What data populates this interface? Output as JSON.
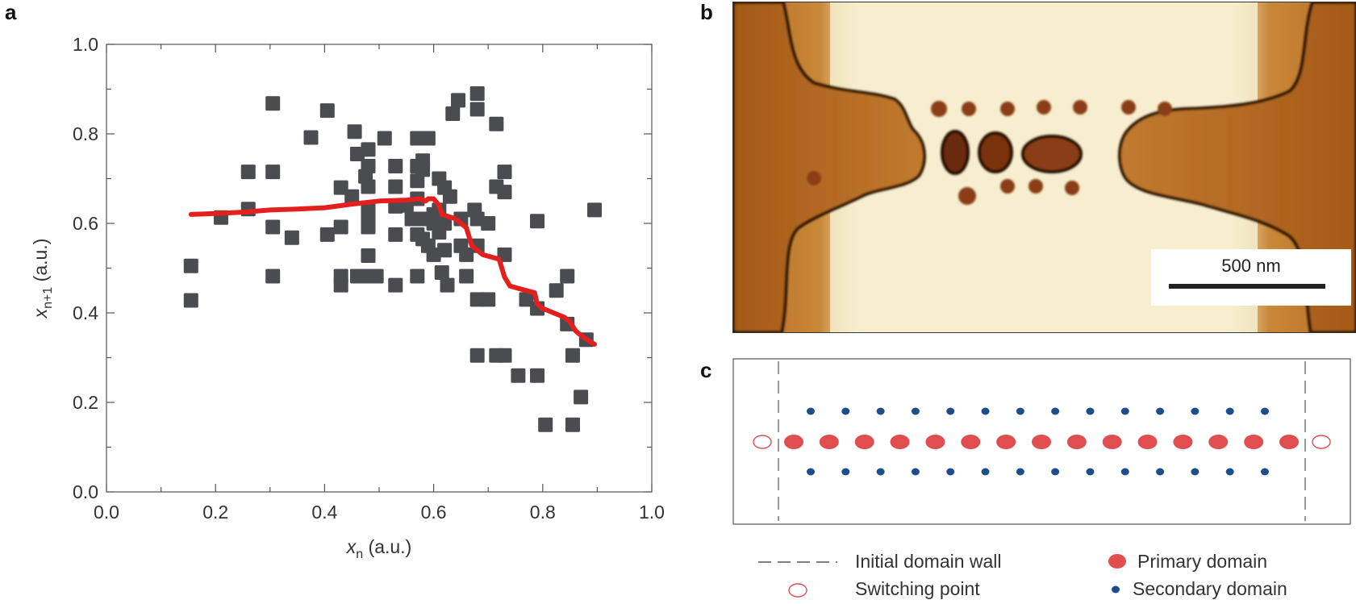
{
  "panels": {
    "a": "a",
    "b": "b",
    "c": "c"
  },
  "chart_data": {
    "type": "scatter",
    "xlabel_main": "x",
    "xlabel_sub": "n",
    "xlabel_unit": " (a.u.)",
    "ylabel_main": "x",
    "ylabel_sub": "n+1",
    "ylabel_unit": " (a.u.)",
    "xlim": [
      0,
      1
    ],
    "ylim": [
      0,
      1
    ],
    "xticks": [
      "0.0",
      "0.2",
      "0.4",
      "0.6",
      "0.8",
      "1.0"
    ],
    "yticks": [
      "0.0",
      "0.2",
      "0.4",
      "0.6",
      "0.8",
      "1.0"
    ],
    "grid": false,
    "points": [
      [
        0.155,
        0.505
      ],
      [
        0.155,
        0.428
      ],
      [
        0.21,
        0.613
      ],
      [
        0.26,
        0.715
      ],
      [
        0.26,
        0.632
      ],
      [
        0.305,
        0.868
      ],
      [
        0.305,
        0.715
      ],
      [
        0.305,
        0.592
      ],
      [
        0.305,
        0.482
      ],
      [
        0.34,
        0.568
      ],
      [
        0.375,
        0.792
      ],
      [
        0.405,
        0.852
      ],
      [
        0.405,
        0.575
      ],
      [
        0.43,
        0.68
      ],
      [
        0.43,
        0.592
      ],
      [
        0.43,
        0.482
      ],
      [
        0.43,
        0.462
      ],
      [
        0.45,
        0.66
      ],
      [
        0.455,
        0.805
      ],
      [
        0.46,
        0.755
      ],
      [
        0.46,
        0.482
      ],
      [
        0.475,
        0.705
      ],
      [
        0.48,
        0.765
      ],
      [
        0.48,
        0.728
      ],
      [
        0.48,
        0.682
      ],
      [
        0.48,
        0.635
      ],
      [
        0.48,
        0.615
      ],
      [
        0.48,
        0.592
      ],
      [
        0.48,
        0.528
      ],
      [
        0.48,
        0.482
      ],
      [
        0.495,
        0.482
      ],
      [
        0.51,
        0.79
      ],
      [
        0.53,
        0.728
      ],
      [
        0.53,
        0.682
      ],
      [
        0.53,
        0.638
      ],
      [
        0.53,
        0.575
      ],
      [
        0.53,
        0.462
      ],
      [
        0.55,
        0.64
      ],
      [
        0.56,
        0.61
      ],
      [
        0.57,
        0.79
      ],
      [
        0.57,
        0.728
      ],
      [
        0.57,
        0.695
      ],
      [
        0.57,
        0.655
      ],
      [
        0.57,
        0.575
      ],
      [
        0.57,
        0.482
      ],
      [
        0.58,
        0.74
      ],
      [
        0.58,
        0.72
      ],
      [
        0.58,
        0.61
      ],
      [
        0.58,
        0.565
      ],
      [
        0.59,
        0.79
      ],
      [
        0.59,
        0.55
      ],
      [
        0.6,
        0.62
      ],
      [
        0.6,
        0.6
      ],
      [
        0.6,
        0.53
      ],
      [
        0.61,
        0.63
      ],
      [
        0.61,
        0.7
      ],
      [
        0.61,
        0.58
      ],
      [
        0.615,
        0.49
      ],
      [
        0.62,
        0.68
      ],
      [
        0.62,
        0.6
      ],
      [
        0.62,
        0.54
      ],
      [
        0.625,
        0.462
      ],
      [
        0.63,
        0.66
      ],
      [
        0.635,
        0.845
      ],
      [
        0.645,
        0.875
      ],
      [
        0.65,
        0.61
      ],
      [
        0.65,
        0.55
      ],
      [
        0.66,
        0.53
      ],
      [
        0.66,
        0.482
      ],
      [
        0.675,
        0.63
      ],
      [
        0.68,
        0.89
      ],
      [
        0.68,
        0.855
      ],
      [
        0.68,
        0.61
      ],
      [
        0.68,
        0.55
      ],
      [
        0.68,
        0.43
      ],
      [
        0.68,
        0.305
      ],
      [
        0.7,
        0.6
      ],
      [
        0.7,
        0.43
      ],
      [
        0.715,
        0.822
      ],
      [
        0.715,
        0.682
      ],
      [
        0.715,
        0.305
      ],
      [
        0.73,
        0.715
      ],
      [
        0.73,
        0.67
      ],
      [
        0.73,
        0.53
      ],
      [
        0.73,
        0.305
      ],
      [
        0.755,
        0.26
      ],
      [
        0.77,
        0.43
      ],
      [
        0.79,
        0.605
      ],
      [
        0.79,
        0.41
      ],
      [
        0.79,
        0.26
      ],
      [
        0.805,
        0.15
      ],
      [
        0.825,
        0.45
      ],
      [
        0.845,
        0.482
      ],
      [
        0.845,
        0.375
      ],
      [
        0.855,
        0.305
      ],
      [
        0.855,
        0.15
      ],
      [
        0.87,
        0.212
      ],
      [
        0.88,
        0.34
      ],
      [
        0.895,
        0.63
      ]
    ],
    "fit_line": [
      [
        0.155,
        0.62
      ],
      [
        0.2,
        0.622
      ],
      [
        0.25,
        0.625
      ],
      [
        0.3,
        0.63
      ],
      [
        0.35,
        0.632
      ],
      [
        0.4,
        0.635
      ],
      [
        0.45,
        0.643
      ],
      [
        0.5,
        0.65
      ],
      [
        0.55,
        0.652
      ],
      [
        0.575,
        0.655
      ],
      [
        0.585,
        0.65
      ],
      [
        0.59,
        0.655
      ],
      [
        0.6,
        0.655
      ],
      [
        0.61,
        0.64
      ],
      [
        0.615,
        0.62
      ],
      [
        0.64,
        0.61
      ],
      [
        0.66,
        0.59
      ],
      [
        0.67,
        0.55
      ],
      [
        0.69,
        0.53
      ],
      [
        0.72,
        0.52
      ],
      [
        0.725,
        0.5
      ],
      [
        0.73,
        0.48
      ],
      [
        0.74,
        0.46
      ],
      [
        0.77,
        0.45
      ],
      [
        0.785,
        0.445
      ],
      [
        0.79,
        0.42
      ],
      [
        0.8,
        0.41
      ],
      [
        0.82,
        0.4
      ],
      [
        0.84,
        0.39
      ],
      [
        0.85,
        0.38
      ],
      [
        0.86,
        0.36
      ],
      [
        0.875,
        0.345
      ],
      [
        0.895,
        0.33
      ]
    ],
    "colors": {
      "points": "#4a4c50",
      "line": "#e4201e",
      "axis": "#555555"
    }
  },
  "afm": {
    "scale_label": "500 nm",
    "colors": {
      "bright": "#f6efcf",
      "dark": "#3a1606",
      "mid": "#a95c1c"
    }
  },
  "schematic": {
    "colors": {
      "primary": "#e04e50",
      "secondary": "#1e4d8c",
      "switch": "#e04e50",
      "wall": "#555555"
    },
    "primary_count": 15,
    "secondary_per_row": 14
  },
  "legend": {
    "wall_label": "Initial domain wall",
    "switch_label": "Switching point",
    "primary_label": "Primary domain",
    "secondary_label": "Secondary domain"
  }
}
